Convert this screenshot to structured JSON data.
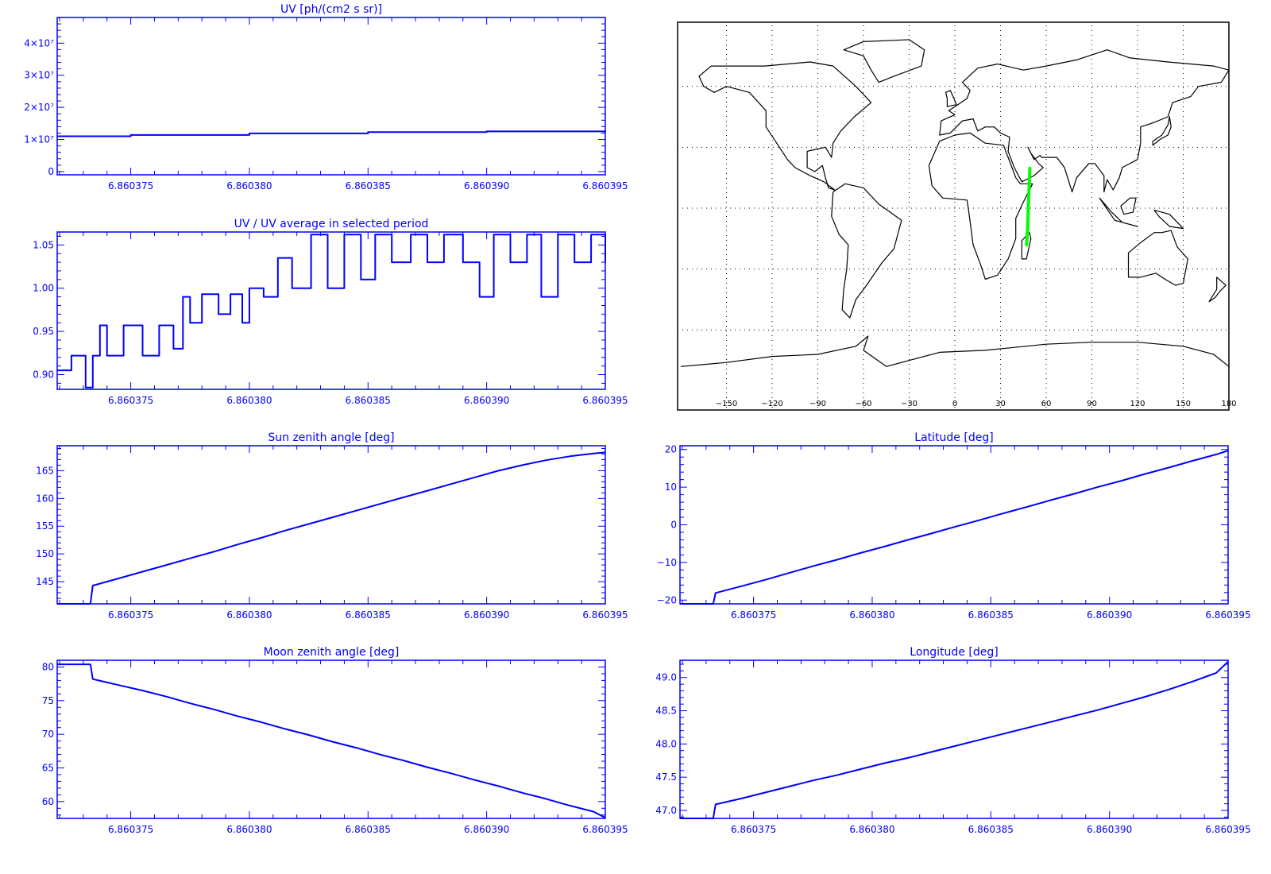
{
  "colors": {
    "plot": "#0000ff",
    "track": "#00ff00",
    "map": "#000000",
    "background": "#ffffff"
  },
  "chart_data": [
    {
      "id": "uv",
      "type": "line",
      "title": "UV [ph/(cm2 s sr)]",
      "xlabel": "",
      "ylabel": "",
      "xlim": [
        6.8603719,
        6.860395
      ],
      "ylim": [
        -1000000,
        48000000
      ],
      "xticks": [
        "6.860375",
        "6.860380",
        "6.860385",
        "6.860390",
        "6.860395"
      ],
      "xtick_values": [
        6.860375,
        6.86038,
        6.860385,
        6.86039,
        6.860395
      ],
      "yticks": [
        "4×10⁷",
        "3×10⁷",
        "2×10⁷",
        "1×10⁷",
        "0"
      ],
      "ytick_values": [
        40000000,
        30000000,
        20000000,
        10000000,
        0
      ],
      "x": [
        6.8603719,
        6.860375,
        6.86038,
        6.860385,
        6.86039,
        6.860395
      ],
      "y": [
        11000000,
        11400000,
        11900000,
        12300000,
        12500000,
        12700000
      ],
      "step": true,
      "grid": false
    },
    {
      "id": "uv-ratio",
      "type": "line",
      "title": "UV / UV average in selected period",
      "xlabel": "",
      "ylabel": "",
      "xlim": [
        6.8603719,
        6.860395
      ],
      "ylim": [
        0.883,
        1.065
      ],
      "xticks": [
        "6.860375",
        "6.860380",
        "6.860385",
        "6.860390",
        "6.860395"
      ],
      "xtick_values": [
        6.860375,
        6.86038,
        6.860385,
        6.86039,
        6.860395
      ],
      "yticks": [
        "1.05",
        "1.00",
        "0.95",
        "0.90"
      ],
      "ytick_values": [
        1.05,
        1.0,
        0.95,
        0.9
      ],
      "x": [
        6.8603719,
        6.8603725,
        6.8603731,
        6.8603734,
        6.8603737,
        6.860374,
        6.8603747,
        6.8603755,
        6.8603762,
        6.8603768,
        6.8603772,
        6.8603775,
        6.860378,
        6.8603787,
        6.8603792,
        6.8603797,
        6.86038,
        6.8603806,
        6.8603812,
        6.8603818,
        6.8603826,
        6.8603833,
        6.860384,
        6.8603847,
        6.8603853,
        6.860386,
        6.8603868,
        6.8603875,
        6.8603882,
        6.860389,
        6.8603897,
        6.8603903,
        6.860391,
        6.8603917,
        6.8603923,
        6.860393,
        6.8603937,
        6.8603944,
        6.860395
      ],
      "y": [
        0.905,
        0.922,
        0.885,
        0.922,
        0.957,
        0.922,
        0.957,
        0.922,
        0.957,
        0.93,
        0.99,
        0.96,
        0.993,
        0.97,
        0.993,
        0.96,
        1.0,
        0.99,
        1.035,
        1.0,
        1.062,
        1.0,
        1.062,
        1.01,
        1.062,
        1.03,
        1.062,
        1.03,
        1.062,
        1.03,
        0.99,
        1.062,
        1.03,
        1.062,
        0.99,
        1.062,
        1.03,
        1.062,
        1.03
      ],
      "step": true,
      "grid": false
    },
    {
      "id": "sun-zenith",
      "type": "line",
      "title": "Sun zenith angle [deg]",
      "xlabel": "",
      "ylabel": "",
      "xlim": [
        6.8603719,
        6.860395
      ],
      "ylim": [
        141,
        169.5
      ],
      "xticks": [
        "6.860375",
        "6.860380",
        "6.860385",
        "6.860390",
        "6.860395"
      ],
      "xtick_values": [
        6.860375,
        6.86038,
        6.860385,
        6.86039,
        6.860395
      ],
      "yticks": [
        "165",
        "160",
        "155",
        "150",
        "145"
      ],
      "ytick_values": [
        165,
        160,
        155,
        150,
        145
      ],
      "x": [
        6.8603719,
        6.8603733,
        6.8603734,
        6.8603745,
        6.8603755,
        6.8603765,
        6.8603775,
        6.8603785,
        6.8603795,
        6.8603805,
        6.8603815,
        6.8603825,
        6.8603835,
        6.8603845,
        6.8603855,
        6.8603865,
        6.8603875,
        6.8603885,
        6.8603895,
        6.8603905,
        6.8603915,
        6.8603925,
        6.8603935,
        6.8603945,
        6.860395
      ],
      "y": [
        141,
        141,
        144.3,
        145.6,
        146.8,
        148.0,
        149.2,
        150.4,
        151.7,
        152.9,
        154.2,
        155.4,
        156.6,
        157.8,
        159.0,
        160.2,
        161.4,
        162.6,
        163.8,
        165.0,
        166.0,
        166.9,
        167.6,
        168.1,
        168.3
      ],
      "grid": false
    },
    {
      "id": "moon-zenith",
      "type": "line",
      "title": "Moon zenith angle [deg]",
      "xlabel": "",
      "ylabel": "",
      "xlim": [
        6.8603719,
        6.860395
      ],
      "ylim": [
        57.5,
        81
      ],
      "xticks": [
        "6.860375",
        "6.860380",
        "6.860385",
        "6.860390",
        "6.860395"
      ],
      "xtick_values": [
        6.860375,
        6.86038,
        6.860385,
        6.86039,
        6.860395
      ],
      "yticks": [
        "80",
        "75",
        "70",
        "65",
        "60"
      ],
      "ytick_values": [
        80,
        75,
        70,
        65,
        60
      ],
      "x": [
        6.8603719,
        6.8603733,
        6.8603734,
        6.8603745,
        6.8603755,
        6.8603765,
        6.8603775,
        6.8603785,
        6.8603795,
        6.8603805,
        6.8603815,
        6.8603825,
        6.8603835,
        6.8603845,
        6.8603855,
        6.8603865,
        6.8603875,
        6.8603885,
        6.8603895,
        6.8603905,
        6.8603915,
        6.8603925,
        6.8603935,
        6.8603945,
        6.860395
      ],
      "y": [
        80.4,
        80.4,
        78.2,
        77.3,
        76.5,
        75.6,
        74.6,
        73.7,
        72.7,
        71.8,
        70.8,
        69.9,
        68.9,
        68.0,
        67.0,
        66.1,
        65.1,
        64.2,
        63.2,
        62.3,
        61.3,
        60.4,
        59.4,
        58.5,
        57.6
      ],
      "grid": false
    },
    {
      "id": "latitude",
      "type": "line",
      "title": "Latitude [deg]",
      "xlabel": "",
      "ylabel": "",
      "xlim": [
        6.8603719,
        6.860395
      ],
      "ylim": [
        -21,
        21
      ],
      "xticks": [
        "6.860375",
        "6.860380",
        "6.860385",
        "6.860390",
        "6.860395"
      ],
      "xtick_values": [
        6.860375,
        6.86038,
        6.860385,
        6.86039,
        6.860395
      ],
      "yticks": [
        "20",
        "10",
        "0",
        "−10",
        "−20"
      ],
      "ytick_values": [
        20,
        10,
        0,
        -10,
        -20
      ],
      "x": [
        6.8603719,
        6.8603733,
        6.8603734,
        6.8603745,
        6.8603755,
        6.8603765,
        6.8603775,
        6.8603785,
        6.8603795,
        6.8603805,
        6.8603815,
        6.8603825,
        6.8603835,
        6.8603845,
        6.8603855,
        6.8603865,
        6.8603875,
        6.8603885,
        6.8603895,
        6.8603905,
        6.8603915,
        6.8603925,
        6.8603935,
        6.8603945,
        6.860395
      ],
      "y": [
        -21,
        -21,
        -18.1,
        -16.3,
        -14.6,
        -12.8,
        -11.0,
        -9.3,
        -7.5,
        -5.8,
        -4.0,
        -2.3,
        -0.5,
        1.2,
        3.0,
        4.7,
        6.5,
        8.2,
        10.0,
        11.7,
        13.5,
        15.2,
        17.0,
        18.7,
        19.7
      ],
      "grid": false
    },
    {
      "id": "longitude",
      "type": "line",
      "title": "Longitude [deg]",
      "xlabel": "",
      "ylabel": "",
      "xlim": [
        6.8603719,
        6.860395
      ],
      "ylim": [
        46.88,
        49.26
      ],
      "xticks": [
        "6.860375",
        "6.860380",
        "6.860385",
        "6.860390",
        "6.860395"
      ],
      "xtick_values": [
        6.860375,
        6.86038,
        6.860385,
        6.86039,
        6.860395
      ],
      "yticks": [
        "49.0",
        "48.5",
        "48.0",
        "47.5",
        "47.0"
      ],
      "ytick_values": [
        49.0,
        48.5,
        48.0,
        47.5,
        47.0
      ],
      "x": [
        6.8603719,
        6.8603733,
        6.8603734,
        6.8603745,
        6.8603755,
        6.8603765,
        6.8603775,
        6.8603785,
        6.8603795,
        6.8603805,
        6.8603815,
        6.8603825,
        6.8603835,
        6.8603845,
        6.8603855,
        6.8603865,
        6.8603875,
        6.8603885,
        6.8603895,
        6.8603905,
        6.8603915,
        6.8603925,
        6.8603935,
        6.8603945,
        6.860395
      ],
      "y": [
        46.88,
        46.88,
        47.09,
        47.18,
        47.27,
        47.36,
        47.45,
        47.53,
        47.62,
        47.71,
        47.79,
        47.88,
        47.97,
        48.06,
        48.15,
        48.24,
        48.33,
        48.42,
        48.51,
        48.61,
        48.71,
        48.82,
        48.94,
        49.07,
        49.24
      ],
      "grid": false
    },
    {
      "id": "map",
      "type": "scatter",
      "title": "",
      "xlabel": "",
      "ylabel": "",
      "xlim": [
        -180,
        180
      ],
      "ylim": [
        -90,
        90
      ],
      "xticks": [
        "−150",
        "−120",
        "−90",
        "−60",
        "−30",
        "0",
        "30",
        "60",
        "90",
        "120",
        "150",
        "180"
      ],
      "xtick_values": [
        -150,
        -120,
        -90,
        -60,
        -30,
        0,
        30,
        60,
        90,
        120,
        150,
        180
      ],
      "grid_lat": [
        60,
        30,
        0,
        -30,
        -60
      ],
      "grid": true,
      "track": {
        "lon": [
          49.24,
          48.5,
          47.8,
          47.1
        ],
        "lat": [
          19.7,
          5.0,
          -10.0,
          -18.1
        ]
      }
    }
  ]
}
